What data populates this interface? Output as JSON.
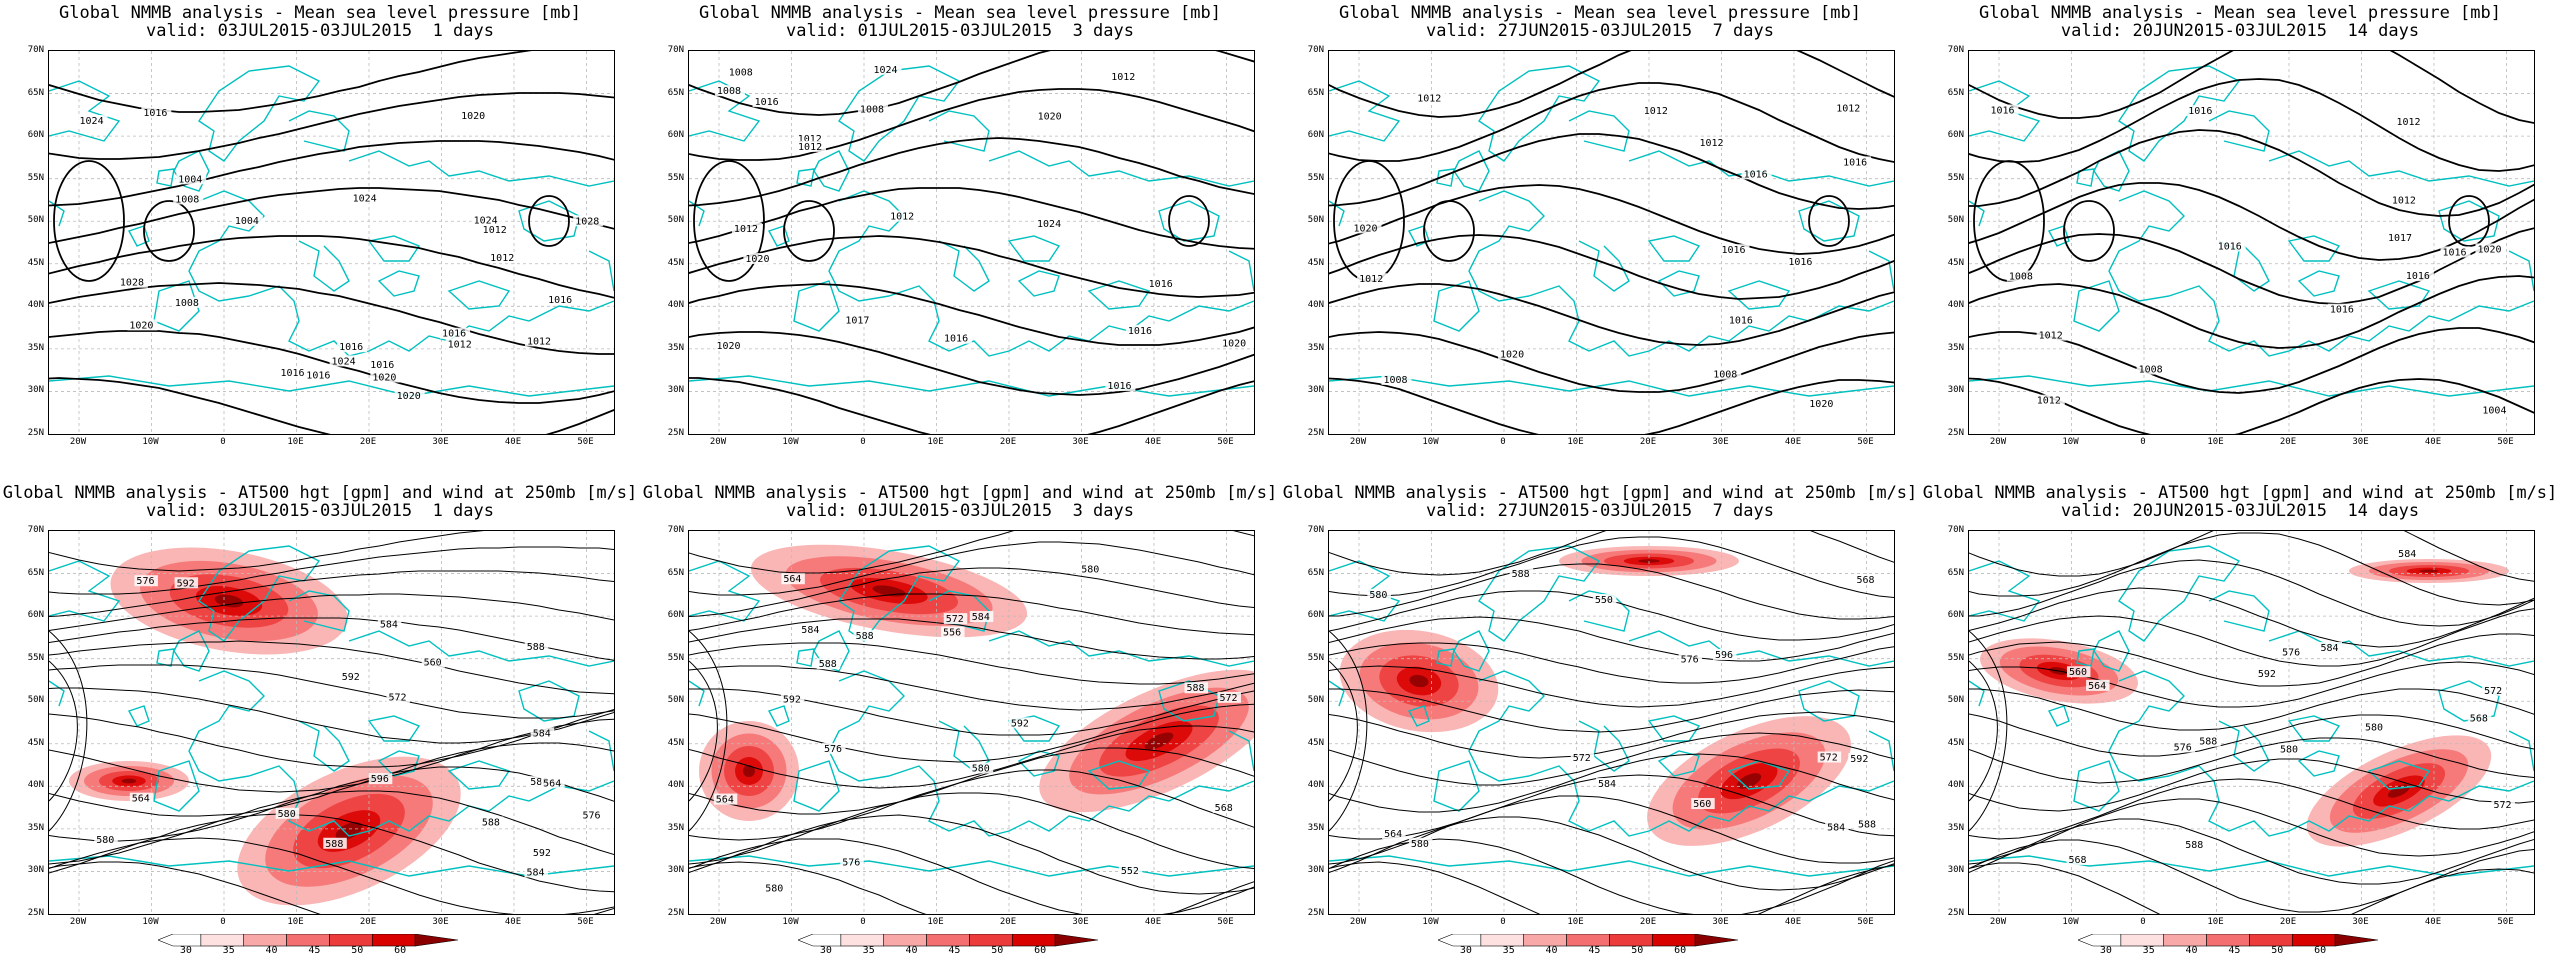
{
  "panels": [
    {
      "row": 0,
      "col": 0,
      "title_line1": "Global NMMB analysis - Mean sea level pressure [mb]",
      "title_line2": "valid: 03JUL2015-03JUL2015  1 days",
      "contour_labels": [
        "1016",
        "1016",
        "1024",
        "1024",
        "1028",
        "1020",
        "1024",
        "1028",
        "1024",
        "1004",
        "1008",
        "1012",
        "1016",
        "1020",
        "1020",
        "1020",
        "1016",
        "1012",
        "1016",
        "1012",
        "1016",
        "1012",
        "1008",
        "1004",
        "1016"
      ]
    },
    {
      "row": 0,
      "col": 1,
      "title_line1": "Global NMMB analysis - Mean sea level pressure [mb]",
      "title_line2": "valid: 01JUL2015-03JUL2015  3 days",
      "contour_labels": [
        "1016",
        "1012",
        "1024",
        "1020",
        "1020",
        "1008",
        "1017",
        "1020",
        "1024",
        "1012",
        "1016",
        "1016",
        "1020",
        "1012",
        "1016",
        "1008",
        "1008",
        "1016",
        "1012",
        "1012"
      ]
    },
    {
      "row": 0,
      "col": 2,
      "title_line1": "Global NMMB analysis - Mean sea level pressure [mb]",
      "title_line2": "valid: 27JUN2015-03JUL2015  7 days",
      "contour_labels": [
        "1016",
        "1012",
        "1016",
        "1020",
        "1020",
        "1016",
        "1012",
        "1020",
        "1016",
        "1012",
        "1008",
        "1016",
        "1012",
        "1008",
        "1012"
      ]
    },
    {
      "row": 0,
      "col": 3,
      "title_line1": "Global NMMB analysis - Mean sea level pressure [mb]",
      "title_line2": "valid: 20JUN2015-03JUL2015  14 days",
      "contour_labels": [
        "1016",
        "1012",
        "1016",
        "1016",
        "1020",
        "1016",
        "1017",
        "1012",
        "1016",
        "1012",
        "1004",
        "1016",
        "1008",
        "1012",
        "1008"
      ]
    },
    {
      "row": 1,
      "col": 0,
      "title_line1": "Global NMMB analysis - AT500 hgt [gpm] and wind at 250mb [m/s]",
      "title_line2": "valid: 03JUL2015-03JUL2015  1 days",
      "contour_labels": [
        "564",
        "572",
        "580",
        "576",
        "584",
        "588",
        "592",
        "560",
        "564",
        "580",
        "592",
        "596",
        "584",
        "588",
        "576",
        "580",
        "584",
        "588",
        "592"
      ]
    },
    {
      "row": 1,
      "col": 1,
      "title_line1": "Global NMMB analysis - AT500 hgt [gpm] and wind at 250mb [m/s]",
      "title_line2": "valid: 01JUL2015-03JUL2015  3 days",
      "contour_labels": [
        "552",
        "564",
        "568",
        "572",
        "576",
        "580",
        "588",
        "592",
        "556",
        "564",
        "572",
        "580",
        "584",
        "588",
        "576",
        "580",
        "584",
        "588",
        "592"
      ]
    },
    {
      "row": 1,
      "col": 2,
      "title_line1": "Global NMMB analysis - AT500 hgt [gpm] and wind at 250mb [m/s]",
      "title_line2": "valid: 27JUN2015-03JUL2015  7 days",
      "contour_labels": [
        "550",
        "560",
        "564",
        "568",
        "572",
        "576",
        "580",
        "584",
        "588",
        "592",
        "596",
        "572",
        "580",
        "584",
        "588"
      ]
    },
    {
      "row": 1,
      "col": 3,
      "title_line1": "Global NMMB analysis - AT500 hgt [gpm] and wind at 250mb [m/s]",
      "title_line2": "valid: 20JUN2015-03JUL2015  14 days",
      "contour_labels": [
        "560",
        "564",
        "568",
        "572",
        "576",
        "580",
        "584",
        "588",
        "592",
        "568",
        "572",
        "576",
        "580",
        "584",
        "588"
      ]
    }
  ],
  "axes": {
    "lat_labels": [
      "70N",
      "65N",
      "60N",
      "55N",
      "50N",
      "45N",
      "40N",
      "35N",
      "30N",
      "25N"
    ],
    "lon_labels": [
      "20W",
      "10W",
      "0",
      "10E",
      "20E",
      "30E",
      "40E",
      "50E"
    ]
  },
  "colorbar": {
    "ticks": [
      "30",
      "35",
      "40",
      "45",
      "50",
      "60"
    ],
    "colors": [
      "#ffffff",
      "#fde0e0",
      "#f9a8a8",
      "#f47070",
      "#ec3b3b",
      "#d90000",
      "#8a0000"
    ]
  },
  "colors": {
    "coastline": "#00c0c0",
    "contour": "#000000",
    "grid": "#bbbbbb"
  }
}
